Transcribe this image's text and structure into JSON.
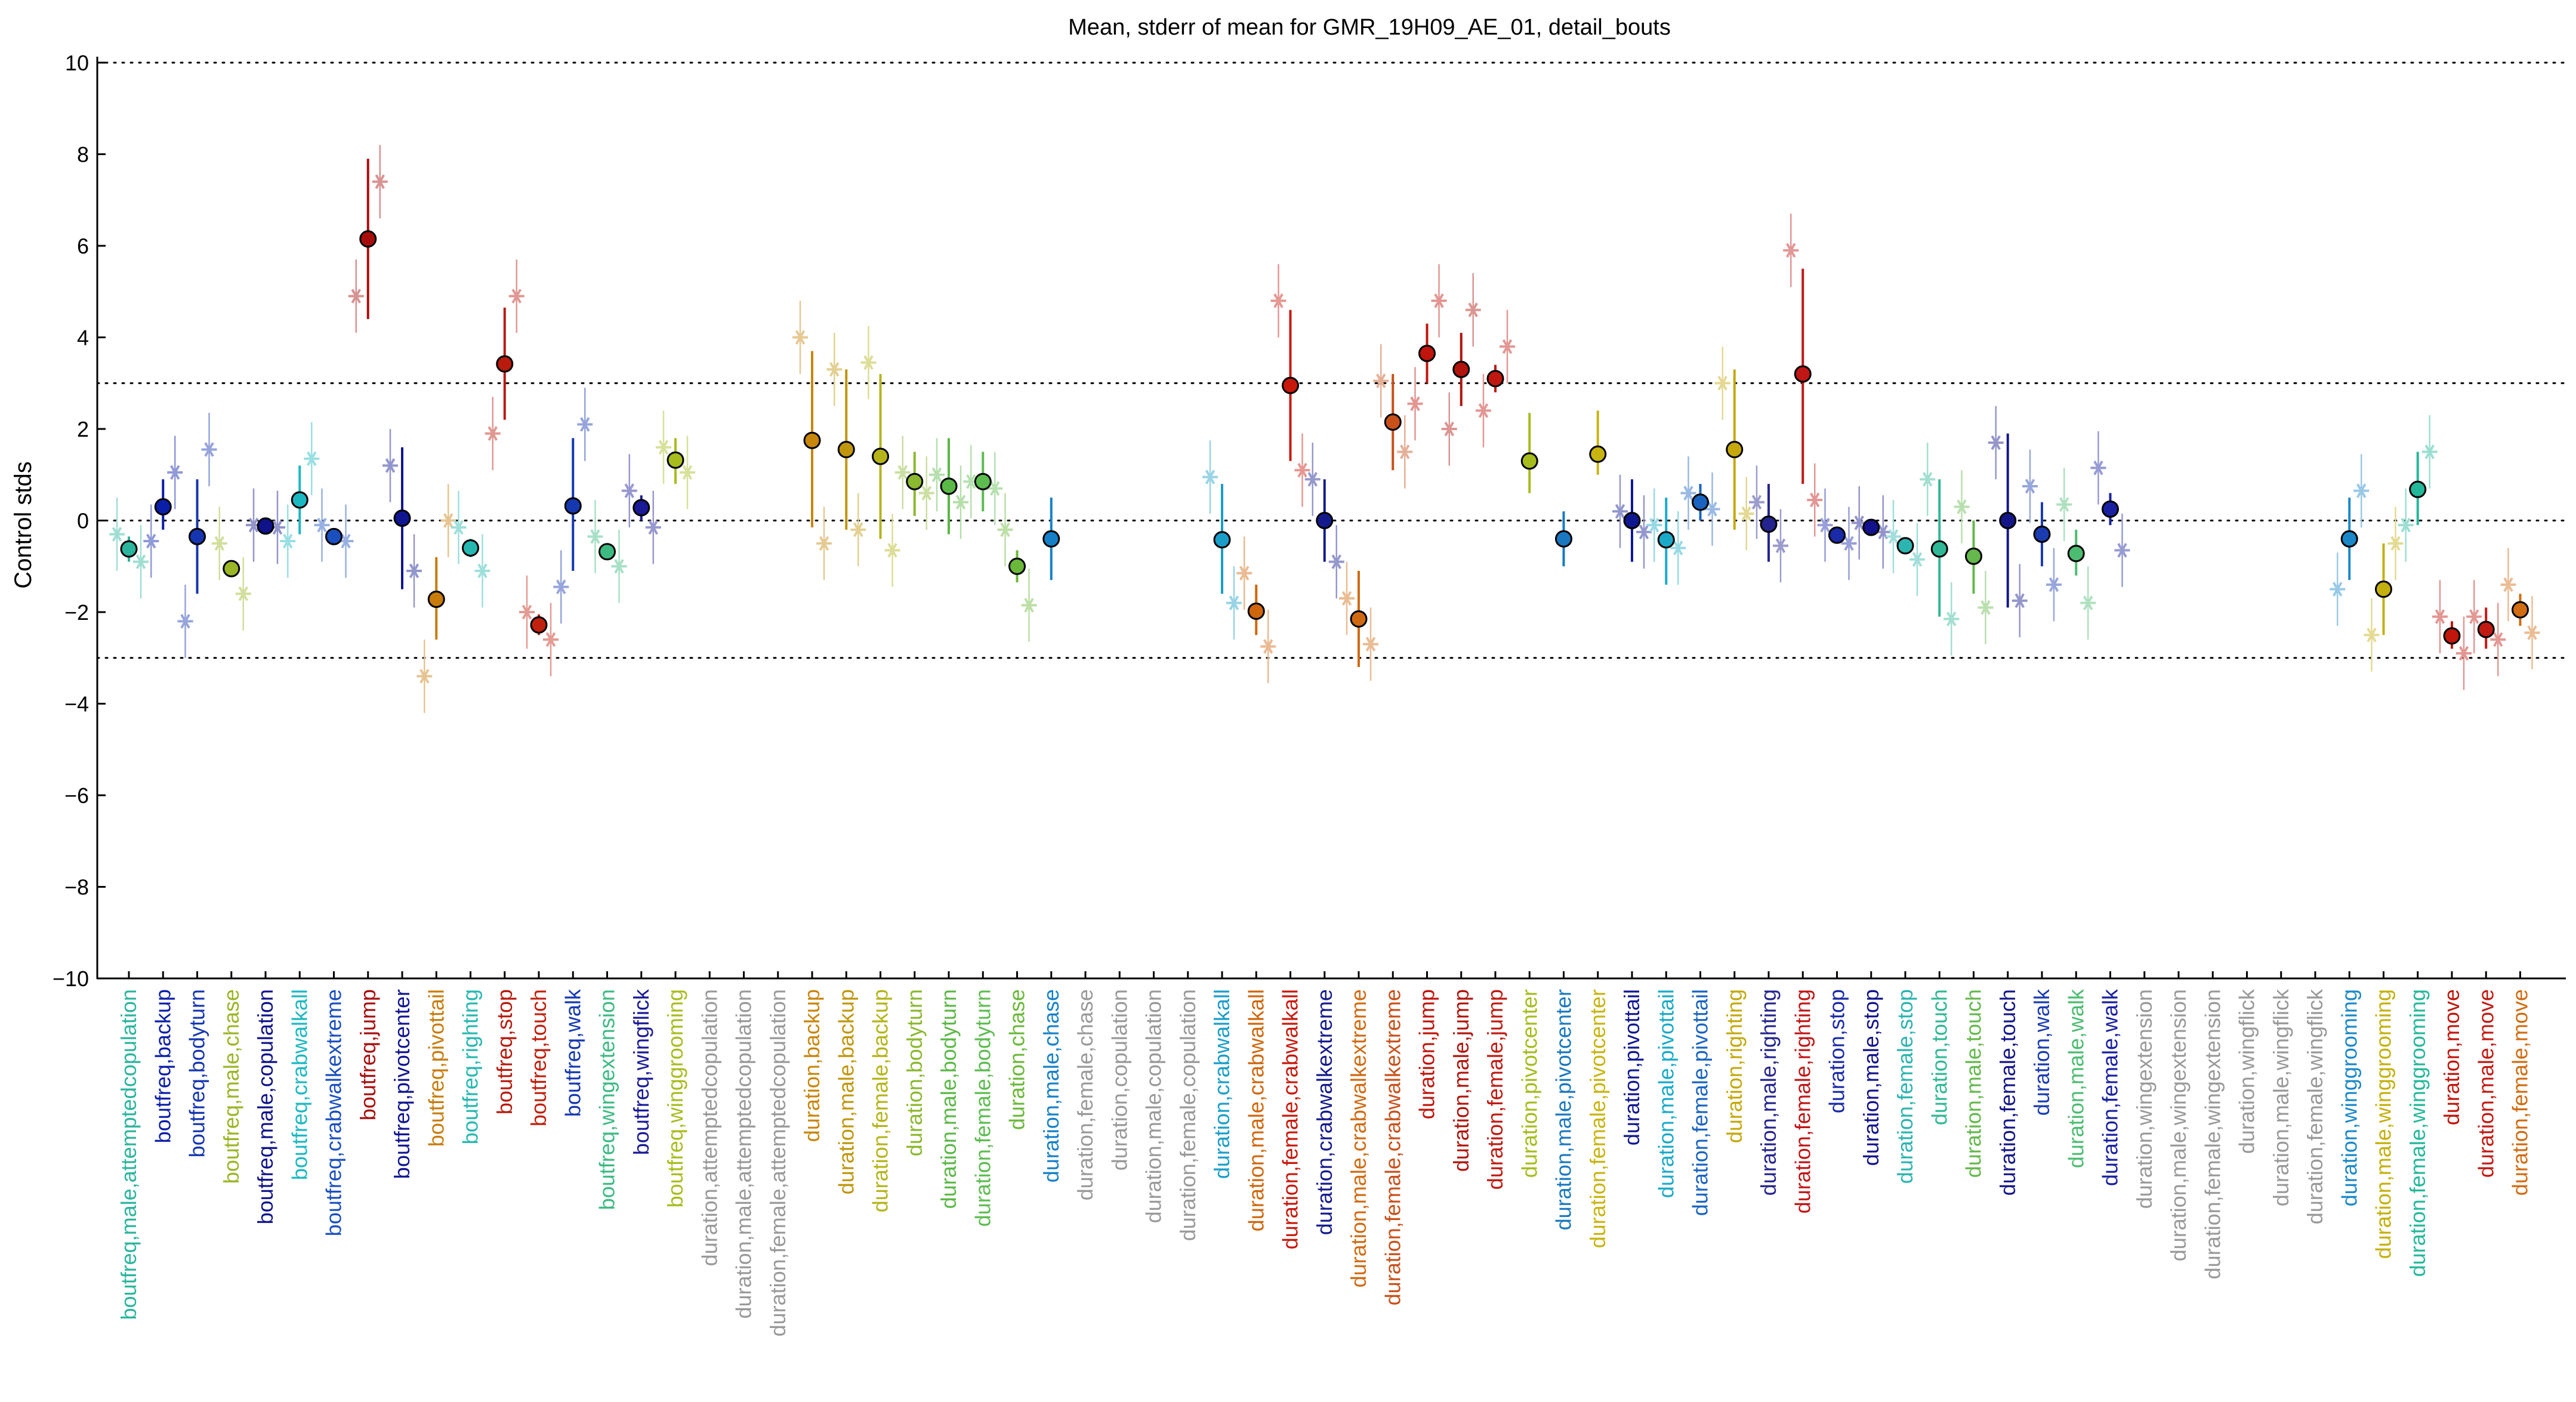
{
  "chart_data": {
    "type": "scatter",
    "title": "Mean, stderr of mean for GMR_19H09_AE_01, detail_bouts",
    "xlabel": "",
    "ylabel": "Control stds",
    "ylim": [
      -10,
      10
    ],
    "yticks": [
      -10,
      -8,
      -6,
      -4,
      -2,
      0,
      2,
      4,
      6,
      8,
      10
    ],
    "ytick_labels": [
      "−10",
      "−8",
      "−6",
      "−4",
      "−2",
      "0",
      "2",
      "4",
      "6",
      "8",
      "10"
    ],
    "reference_lines": [
      -10,
      -3,
      0,
      3,
      10
    ],
    "grid": false,
    "legend": "none",
    "marker_circle": "mean",
    "marker_star": "per-line values",
    "categories": [
      {
        "label": "boutfreq,male,attemptedcopulation",
        "color": "#2bb59c",
        "mean": -0.62,
        "lo": -0.9,
        "hi": -0.35,
        "stars": [
          -0.3,
          -0.9
        ]
      },
      {
        "label": "boutfreq,backup",
        "color": "#0a1ea8",
        "mean": 0.3,
        "lo": -0.2,
        "hi": 0.9,
        "stars": [
          -0.45,
          1.05
        ]
      },
      {
        "label": "boutfreq,bodyturn",
        "color": "#1535b0",
        "mean": -0.35,
        "lo": -1.6,
        "hi": 0.9,
        "stars": [
          -2.2,
          1.55
        ]
      },
      {
        "label": "boutfreq,male,chase",
        "color": "#9ab526",
        "mean": -1.05,
        "lo": -1.2,
        "hi": -0.9,
        "stars": [
          -0.5,
          -1.6
        ]
      },
      {
        "label": "boutfreq,male,copulation",
        "color": "#10128a",
        "mean": -0.12,
        "lo": -0.22,
        "hi": -0.02,
        "stars": [
          -0.1,
          -0.15
        ]
      },
      {
        "label": "boutfreq,crabwalkall",
        "color": "#1cb8c2",
        "mean": 0.45,
        "lo": -0.3,
        "hi": 1.2,
        "stars": [
          -0.45,
          1.35
        ]
      },
      {
        "label": "boutfreq,crabwalkextreme",
        "color": "#1a4fc0",
        "mean": -0.35,
        "lo": -0.5,
        "hi": -0.2,
        "stars": [
          -0.1,
          -0.45
        ]
      },
      {
        "label": "boutfreq,jump",
        "color": "#a80d0d",
        "mean": 6.15,
        "lo": 4.4,
        "hi": 7.9,
        "stars": [
          4.9,
          7.4
        ]
      },
      {
        "label": "boutfreq,pivotcenter",
        "color": "#101590",
        "mean": 0.05,
        "lo": -1.5,
        "hi": 1.6,
        "stars": [
          1.2,
          -1.1
        ]
      },
      {
        "label": "boutfreq,pivottail",
        "color": "#c87c0c",
        "mean": -1.72,
        "lo": -2.6,
        "hi": -0.8,
        "stars": [
          -3.4,
          0.0
        ]
      },
      {
        "label": "boutfreq,righting",
        "color": "#26b8b0",
        "mean": -0.6,
        "lo": -0.8,
        "hi": -0.4,
        "stars": [
          -0.15,
          -1.1
        ]
      },
      {
        "label": "boutfreq,stop",
        "color": "#b81a0c",
        "mean": 3.42,
        "lo": 2.2,
        "hi": 4.65,
        "stars": [
          1.9,
          4.9
        ]
      },
      {
        "label": "boutfreq,touch",
        "color": "#c0200e",
        "mean": -2.28,
        "lo": -2.5,
        "hi": -2.05,
        "stars": [
          -2.0,
          -2.6
        ]
      },
      {
        "label": "boutfreq,walk",
        "color": "#1538b0",
        "mean": 0.32,
        "lo": -1.1,
        "hi": 1.8,
        "stars": [
          -1.45,
          2.1
        ]
      },
      {
        "label": "boutfreq,wingextension",
        "color": "#3cba82",
        "mean": -0.68,
        "lo": -0.85,
        "hi": -0.5,
        "stars": [
          -0.35,
          -1.0
        ]
      },
      {
        "label": "boutfreq,wingflick",
        "color": "#1a1a96",
        "mean": 0.28,
        "lo": 0.0,
        "hi": 0.55,
        "stars": [
          0.65,
          -0.15
        ]
      },
      {
        "label": "boutfreq,winggrooming",
        "color": "#a8bc1e",
        "mean": 1.32,
        "lo": 0.8,
        "hi": 1.8,
        "stars": [
          1.6,
          1.05
        ]
      },
      {
        "label": "duration,attemptedcopulation",
        "color": "#999999"
      },
      {
        "label": "duration,male,attemptedcopulation",
        "color": "#999999"
      },
      {
        "label": "duration,female,attemptedcopulation",
        "color": "#999999"
      },
      {
        "label": "duration,backup",
        "color": "#c8860c",
        "mean": 1.75,
        "lo": -0.15,
        "hi": 3.7,
        "stars": [
          4.0,
          -0.5
        ]
      },
      {
        "label": "duration,male,backup",
        "color": "#c0960c",
        "mean": 1.55,
        "lo": -0.2,
        "hi": 3.3,
        "stars": [
          3.3,
          -0.2
        ]
      },
      {
        "label": "duration,female,backup",
        "color": "#b4b41a",
        "mean": 1.4,
        "lo": -0.4,
        "hi": 3.2,
        "stars": [
          3.45,
          -0.65
        ]
      },
      {
        "label": "duration,bodyturn",
        "color": "#8ab82e",
        "mean": 0.85,
        "lo": 0.1,
        "hi": 1.5,
        "stars": [
          1.05,
          0.6
        ]
      },
      {
        "label": "duration,male,bodyturn",
        "color": "#5ab846",
        "mean": 0.75,
        "lo": -0.3,
        "hi": 1.8,
        "stars": [
          1.0,
          0.4
        ]
      },
      {
        "label": "duration,female,bodyturn",
        "color": "#5cbc50",
        "mean": 0.85,
        "lo": 0.2,
        "hi": 1.5,
        "stars": [
          0.85,
          0.7
        ]
      },
      {
        "label": "duration,chase",
        "color": "#6ab83a",
        "mean": -1.0,
        "lo": -1.35,
        "hi": -0.65,
        "stars": [
          -0.2,
          -1.85
        ]
      },
      {
        "label": "duration,male,chase",
        "color": "#1580c8",
        "mean": -0.4,
        "lo": -1.3,
        "hi": 0.5,
        "stars": []
      },
      {
        "label": "duration,female,chase",
        "color": "#999999"
      },
      {
        "label": "duration,copulation",
        "color": "#999999"
      },
      {
        "label": "duration,male,copulation",
        "color": "#999999"
      },
      {
        "label": "duration,female,copulation",
        "color": "#999999"
      },
      {
        "label": "duration,crabwalkall",
        "color": "#1a9ec8",
        "mean": -0.42,
        "lo": -1.6,
        "hi": 0.8,
        "stars": [
          0.95,
          -1.8
        ]
      },
      {
        "label": "duration,male,crabwalkall",
        "color": "#d0660c",
        "mean": -1.98,
        "lo": -2.5,
        "hi": -1.4,
        "stars": [
          -1.15,
          -2.75
        ]
      },
      {
        "label": "duration,female,crabwalkall",
        "color": "#c8180c",
        "mean": 2.95,
        "lo": 1.3,
        "hi": 4.6,
        "stars": [
          4.8,
          1.1
        ]
      },
      {
        "label": "duration,crabwalkextreme",
        "color": "#141a8c",
        "mean": 0.0,
        "lo": -0.9,
        "hi": 0.9,
        "stars": [
          0.9,
          -0.9
        ]
      },
      {
        "label": "duration,male,crabwalkextreme",
        "color": "#d06a12",
        "mean": -2.15,
        "lo": -3.2,
        "hi": -1.1,
        "stars": [
          -1.7,
          -2.7
        ]
      },
      {
        "label": "duration,female,crabwalkextreme",
        "color": "#c8501a",
        "mean": 2.15,
        "lo": 1.1,
        "hi": 3.2,
        "stars": [
          3.05,
          1.5
        ]
      },
      {
        "label": "duration,jump",
        "color": "#c0140c",
        "mean": 3.65,
        "lo": 3.0,
        "hi": 4.3,
        "stars": [
          2.55,
          4.8
        ]
      },
      {
        "label": "duration,male,jump",
        "color": "#b0140c",
        "mean": 3.3,
        "lo": 2.5,
        "hi": 4.1,
        "stars": [
          2.0,
          4.6
        ]
      },
      {
        "label": "duration,female,jump",
        "color": "#c01810",
        "mean": 3.1,
        "lo": 2.8,
        "hi": 3.4,
        "stars": [
          2.4,
          3.8
        ]
      },
      {
        "label": "duration,pivotcenter",
        "color": "#a6bc1c",
        "mean": 1.3,
        "lo": 0.6,
        "hi": 2.35,
        "stars": []
      },
      {
        "label": "duration,male,pivotcenter",
        "color": "#1a78c0",
        "mean": -0.4,
        "lo": -1.0,
        "hi": 0.2,
        "stars": []
      },
      {
        "label": "duration,female,pivotcenter",
        "color": "#c8b410",
        "mean": 1.45,
        "lo": 1.0,
        "hi": 2.4,
        "stars": []
      },
      {
        "label": "duration,pivottail",
        "color": "#101890",
        "mean": 0.0,
        "lo": -0.9,
        "hi": 0.9,
        "stars": [
          0.2,
          -0.25
        ]
      },
      {
        "label": "duration,male,pivottail",
        "color": "#1aaac8",
        "mean": -0.42,
        "lo": -1.4,
        "hi": 0.5,
        "stars": [
          -0.1,
          -0.6
        ]
      },
      {
        "label": "duration,female,pivottail",
        "color": "#1a64c0",
        "mean": 0.4,
        "lo": 0.0,
        "hi": 0.8,
        "stars": [
          0.6,
          0.25
        ]
      },
      {
        "label": "duration,righting",
        "color": "#c4a80c",
        "mean": 1.55,
        "lo": -0.2,
        "hi": 3.3,
        "stars": [
          3.0,
          0.15
        ]
      },
      {
        "label": "duration,male,righting",
        "color": "#24248e",
        "mean": -0.08,
        "lo": -0.9,
        "hi": 0.8,
        "stars": [
          0.4,
          -0.55
        ]
      },
      {
        "label": "duration,female,righting",
        "color": "#c01616",
        "mean": 3.2,
        "lo": 0.8,
        "hi": 5.5,
        "stars": [
          5.9,
          0.45
        ]
      },
      {
        "label": "duration,stop",
        "color": "#1a2aa8",
        "mean": -0.32,
        "lo": -0.5,
        "hi": -0.15,
        "stars": [
          -0.1,
          -0.5
        ]
      },
      {
        "label": "duration,male,stop",
        "color": "#12128c",
        "mean": -0.15,
        "lo": -0.3,
        "hi": 0.0,
        "stars": [
          -0.05,
          -0.25
        ]
      },
      {
        "label": "duration,female,stop",
        "color": "#2cb4b0",
        "mean": -0.55,
        "lo": -0.7,
        "hi": -0.4,
        "stars": [
          -0.35,
          -0.85
        ]
      },
      {
        "label": "duration,touch",
        "color": "#30b896",
        "mean": -0.62,
        "lo": -2.1,
        "hi": 0.9,
        "stars": [
          0.9,
          -2.15
        ]
      },
      {
        "label": "duration,male,touch",
        "color": "#64b84c",
        "mean": -0.78,
        "lo": -1.6,
        "hi": 0.0,
        "stars": [
          0.3,
          -1.9
        ]
      },
      {
        "label": "duration,female,touch",
        "color": "#141688",
        "mean": 0.0,
        "lo": -1.9,
        "hi": 1.9,
        "stars": [
          1.7,
          -1.75
        ]
      },
      {
        "label": "duration,walk",
        "color": "#1a3cb0",
        "mean": -0.3,
        "lo": -1.0,
        "hi": 0.4,
        "stars": [
          0.75,
          -1.4
        ]
      },
      {
        "label": "duration,male,walk",
        "color": "#4cbc70",
        "mean": -0.72,
        "lo": -1.2,
        "hi": -0.2,
        "stars": [
          0.35,
          -1.8
        ]
      },
      {
        "label": "duration,female,walk",
        "color": "#1820a0",
        "mean": 0.25,
        "lo": -0.1,
        "hi": 0.6,
        "stars": [
          1.15,
          -0.65
        ]
      },
      {
        "label": "duration,wingextension",
        "color": "#999999"
      },
      {
        "label": "duration,male,wingextension",
        "color": "#999999"
      },
      {
        "label": "duration,female,wingextension",
        "color": "#999999"
      },
      {
        "label": "duration,wingflick",
        "color": "#999999"
      },
      {
        "label": "duration,male,wingflick",
        "color": "#999999"
      },
      {
        "label": "duration,female,wingflick",
        "color": "#999999"
      },
      {
        "label": "duration,winggrooming",
        "color": "#1a88c8",
        "mean": -0.4,
        "lo": -1.3,
        "hi": 0.5,
        "stars": [
          -1.5,
          0.65
        ]
      },
      {
        "label": "duration,male,winggrooming",
        "color": "#c4b00c",
        "mean": -1.5,
        "lo": -2.5,
        "hi": -0.5,
        "stars": [
          -2.5,
          -0.5
        ]
      },
      {
        "label": "duration,female,winggrooming",
        "color": "#24b89a",
        "mean": 0.68,
        "lo": -0.1,
        "hi": 1.5,
        "stars": [
          -0.1,
          1.5
        ]
      },
      {
        "label": "duration,move",
        "color": "#c0160c",
        "mean": -2.52,
        "lo": -2.8,
        "hi": -2.2,
        "stars": [
          -2.1,
          -2.9
        ]
      },
      {
        "label": "duration,male,move",
        "color": "#c01a12",
        "mean": -2.38,
        "lo": -2.8,
        "hi": -1.9,
        "stars": [
          -2.1,
          -2.6
        ]
      },
      {
        "label": "duration,female,move",
        "color": "#d06c12",
        "mean": -1.95,
        "lo": -2.3,
        "hi": -1.6,
        "stars": [
          -1.4,
          -2.45
        ]
      }
    ]
  }
}
